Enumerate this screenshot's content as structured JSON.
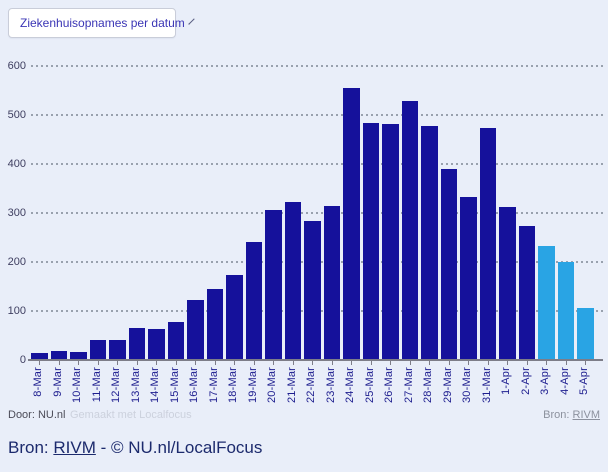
{
  "controls": {
    "chart_selector": {
      "value": "Ziekenhuisopnames per datum"
    }
  },
  "chart_data": {
    "type": "bar",
    "title": "Ziekenhuisopnames per datum",
    "categories": [
      "8-Mar",
      "9-Mar",
      "10-Mar",
      "11-Mar",
      "12-Mar",
      "13-Mar",
      "14-Mar",
      "15-Mar",
      "16-Mar",
      "17-Mar",
      "18-Mar",
      "19-Mar",
      "20-Mar",
      "21-Mar",
      "22-Mar",
      "23-Mar",
      "24-Mar",
      "25-Mar",
      "26-Mar",
      "27-Mar",
      "28-Mar",
      "29-Mar",
      "30-Mar",
      "31-Mar",
      "1-Apr",
      "2-Apr",
      "3-Apr",
      "4-Apr",
      "5-Apr"
    ],
    "values": [
      15,
      18,
      16,
      40,
      41,
      65,
      63,
      78,
      123,
      144,
      173,
      240,
      307,
      322,
      284,
      314,
      555,
      483,
      482,
      528,
      477,
      390,
      333,
      473,
      312,
      273,
      232,
      201,
      106
    ],
    "xlabel": "",
    "ylabel": "",
    "ylim": [
      0,
      600
    ],
    "yticks": [
      0,
      100,
      200,
      300,
      400,
      500,
      600
    ],
    "grid": "horizontal-dotted",
    "legend": "none",
    "bar_color": "#15119b",
    "highlight_color": "#29a4e4",
    "highlight_last_n": 3
  },
  "footer": {
    "byline": "Door: NU.nl",
    "watermark": "Gemaakt met Localfocus",
    "source_label": "Bron:",
    "source_link": "RIVM"
  },
  "caption": {
    "prefix": "Bron: ",
    "link": "RIVM",
    "suffix": " - © NU.nl/LocalFocus"
  },
  "colors": {
    "background": "#e9eef9",
    "bar_default": "#15119b",
    "bar_highlight": "#29a4e4",
    "axis": "#7d7d88",
    "grid": "#99a1ae"
  }
}
